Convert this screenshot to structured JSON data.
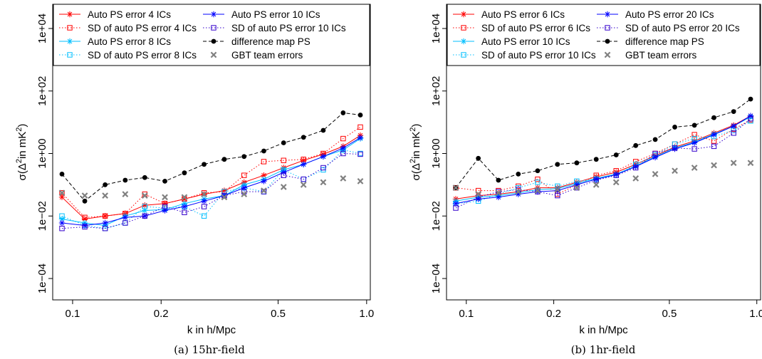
{
  "chart_data": [
    {
      "type": "line",
      "caption": "(a) 15hr-field",
      "xlabel": "k in h/Mpc",
      "ylabel_main": "σ(Δ",
      "ylabel_sup": "2",
      "ylabel_mid": "in mK",
      "ylabel_sup2": "2",
      "ylabel_end": ")",
      "x_scale": "log",
      "y_scale": "log",
      "xlim": [
        0.085,
        1.02
      ],
      "ylim": [
        0.0001,
        10000
      ],
      "x_ticks": [
        0.1,
        0.2,
        0.5,
        1.0
      ],
      "x_tick_labels": [
        "0.1",
        "0.2",
        "0.5",
        "1.0"
      ],
      "y_ticks": [
        0.0001,
        0.01,
        1,
        100,
        10000
      ],
      "y_tick_labels": [
        "1e−04",
        "1e−02",
        "1e+00",
        "1e+02",
        "1e+04"
      ],
      "grid": false,
      "legend_position": "top",
      "x": [
        0.092,
        0.11,
        0.129,
        0.151,
        0.176,
        0.206,
        0.24,
        0.28,
        0.328,
        0.383,
        0.447,
        0.522,
        0.61,
        0.712,
        0.832,
        0.952
      ],
      "series": [
        {
          "name": "Auto PS error 4 ICs",
          "color": "#ff0000",
          "marker": "asterisk",
          "line": "solid",
          "values": [
            0.04,
            0.008,
            0.01,
            0.012,
            0.022,
            0.025,
            0.035,
            0.05,
            0.065,
            0.12,
            0.2,
            0.35,
            0.6,
            0.95,
            1.7,
            3.8
          ]
        },
        {
          "name": "SD of auto PS error 4 ICs",
          "color": "#ff0000",
          "marker": "square",
          "line": "dotted",
          "values": [
            0.055,
            0.009,
            0.01,
            0.012,
            0.05,
            0.025,
            0.035,
            0.055,
            0.06,
            0.2,
            0.55,
            0.6,
            0.65,
            1.0,
            3.0,
            7.0
          ]
        },
        {
          "name": "Auto PS error 8 ICs",
          "color": "#00bfff",
          "marker": "asterisk",
          "line": "solid",
          "values": [
            0.008,
            0.006,
            0.005,
            0.01,
            0.015,
            0.016,
            0.025,
            0.035,
            0.045,
            0.1,
            0.15,
            0.3,
            0.45,
            0.8,
            1.3,
            3.0
          ]
        },
        {
          "name": "SD of auto PS error 8 ICs",
          "color": "#00bfff",
          "marker": "square",
          "line": "dotted",
          "values": [
            0.01,
            0.005,
            0.004,
            0.006,
            0.02,
            0.018,
            0.02,
            0.01,
            0.06,
            0.08,
            0.06,
            0.3,
            0.15,
            0.3,
            1.3,
            1.0
          ]
        },
        {
          "name": "Auto PS error 10 ICs",
          "color": "#0000ff",
          "marker": "asterisk",
          "line": "solid",
          "values": [
            0.006,
            0.005,
            0.006,
            0.009,
            0.01,
            0.015,
            0.02,
            0.03,
            0.045,
            0.08,
            0.13,
            0.25,
            0.45,
            0.8,
            1.5,
            3.2
          ]
        },
        {
          "name": "SD of auto PS error 10 ICs",
          "color": "#3300cc",
          "marker": "square",
          "line": "dotted",
          "values": [
            0.004,
            0.0045,
            0.004,
            0.006,
            0.01,
            0.02,
            0.013,
            0.02,
            0.045,
            0.06,
            0.06,
            0.2,
            0.15,
            0.35,
            1.0,
            0.95
          ]
        },
        {
          "name": "difference map PS",
          "color": "#000000",
          "marker": "dot",
          "line": "dashed",
          "values": [
            0.22,
            0.03,
            0.1,
            0.14,
            0.17,
            0.13,
            0.24,
            0.45,
            0.65,
            0.8,
            1.2,
            2.2,
            3.3,
            5.5,
            20,
            17
          ]
        },
        {
          "name": "GBT team errors",
          "color": "#808080",
          "marker": "x",
          "line": "none",
          "values": [
            0.055,
            0.045,
            0.045,
            0.05,
            0.045,
            0.04,
            0.04,
            0.05,
            0.04,
            0.05,
            0.065,
            0.085,
            0.1,
            0.12,
            0.16,
            0.13
          ]
        }
      ]
    },
    {
      "type": "line",
      "caption": "(b) 1hr-field",
      "xlabel": "k in h/Mpc",
      "ylabel_main": "σ(Δ",
      "ylabel_sup": "2",
      "ylabel_mid": "in mK",
      "ylabel_sup2": "2",
      "ylabel_end": ")",
      "x_scale": "log",
      "y_scale": "log",
      "xlim": [
        0.085,
        1.02
      ],
      "ylim": [
        0.0001,
        10000
      ],
      "x_ticks": [
        0.1,
        0.2,
        0.5,
        1.0
      ],
      "x_tick_labels": [
        "0.1",
        "0.2",
        "0.5",
        "1.0"
      ],
      "y_ticks": [
        0.0001,
        0.01,
        1,
        100,
        10000
      ],
      "y_tick_labels": [
        "1e−04",
        "1e−02",
        "1e+00",
        "1e+02",
        "1e+04"
      ],
      "grid": false,
      "legend_position": "top",
      "x": [
        0.092,
        0.11,
        0.129,
        0.151,
        0.176,
        0.206,
        0.24,
        0.28,
        0.328,
        0.383,
        0.447,
        0.522,
        0.61,
        0.712,
        0.832,
        0.952
      ],
      "series": [
        {
          "name": "Auto PS error 6 ICs",
          "color": "#ff0000",
          "marker": "asterisk",
          "line": "solid",
          "values": [
            0.035,
            0.045,
            0.05,
            0.06,
            0.08,
            0.08,
            0.12,
            0.18,
            0.25,
            0.45,
            0.85,
            1.6,
            2.5,
            4.5,
            8,
            16
          ]
        },
        {
          "name": "SD of auto PS error 6 ICs",
          "color": "#ff0000",
          "marker": "square",
          "line": "dotted",
          "values": [
            0.08,
            0.065,
            0.065,
            0.09,
            0.15,
            0.05,
            0.1,
            0.2,
            0.28,
            0.55,
            1.0,
            2.0,
            4.0,
            2.5,
            6.0,
            12.0
          ]
        },
        {
          "name": "Auto PS error 10 ICs",
          "color": "#00bfff",
          "marker": "asterisk",
          "line": "solid",
          "values": [
            0.03,
            0.04,
            0.045,
            0.055,
            0.07,
            0.075,
            0.11,
            0.16,
            0.22,
            0.4,
            0.8,
            1.5,
            2.3,
            4.2,
            7.5,
            15
          ]
        },
        {
          "name": "SD of auto PS error 10 ICs",
          "color": "#00bfff",
          "marker": "square",
          "line": "dotted",
          "values": [
            0.025,
            0.03,
            0.05,
            0.08,
            0.12,
            0.09,
            0.13,
            0.15,
            0.2,
            0.45,
            0.9,
            2.0,
            3.0,
            3.5,
            5.5,
            11.0
          ]
        },
        {
          "name": "Auto PS error 20 ICs",
          "color": "#0000ff",
          "marker": "asterisk",
          "line": "solid",
          "values": [
            0.025,
            0.035,
            0.04,
            0.05,
            0.06,
            0.065,
            0.1,
            0.15,
            0.21,
            0.38,
            0.75,
            1.4,
            2.2,
            4.0,
            7.5,
            16
          ]
        },
        {
          "name": "SD of auto PS error 20 ICs",
          "color": "#3300cc",
          "marker": "square",
          "line": "dotted",
          "values": [
            0.018,
            0.04,
            0.06,
            0.07,
            0.06,
            0.045,
            0.08,
            0.14,
            0.2,
            0.35,
            1.0,
            1.5,
            1.4,
            1.7,
            4.5,
            13.0
          ]
        },
        {
          "name": "difference map PS",
          "color": "#000000",
          "marker": "dot",
          "line": "dashed",
          "values": [
            0.08,
            0.7,
            0.14,
            0.22,
            0.28,
            0.45,
            0.5,
            0.65,
            0.9,
            1.8,
            2.8,
            7.0,
            8.0,
            14,
            22,
            55
          ]
        },
        {
          "name": "GBT team errors",
          "color": "#808080",
          "marker": "x",
          "line": "none",
          "values": [
            0.08,
            0.05,
            0.055,
            0.06,
            0.065,
            0.07,
            0.08,
            0.1,
            0.12,
            0.16,
            0.22,
            0.28,
            0.35,
            0.42,
            0.5,
            0.5
          ]
        }
      ]
    }
  ]
}
